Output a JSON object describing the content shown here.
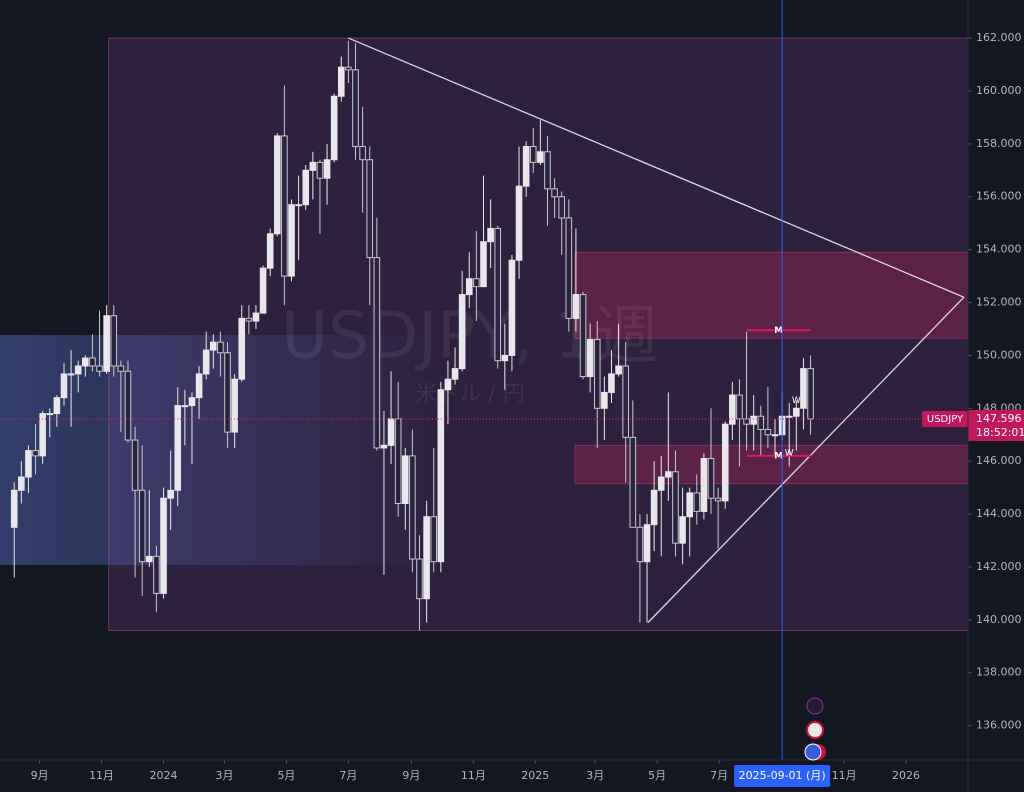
{
  "chart_data": {
    "type": "candlestick",
    "watermark": "USDJPY, 1週",
    "watermark_sub": "米ドル / 円",
    "symbol": "USDJPY",
    "last_price": {
      "value": 147.596,
      "label": "147.596"
    },
    "countdown": "18:52:01",
    "up_color": "#e8e8ec",
    "down_color": "#c8c8d0",
    "xlim": [
      "2023-07-24",
      "2026-03-03"
    ],
    "ylim": [
      134.7,
      163.44
    ],
    "yticks": [
      {
        "value": 136,
        "label": "136.000"
      },
      {
        "value": 138,
        "label": "138.000"
      },
      {
        "value": 140,
        "label": "140.000"
      },
      {
        "value": 142,
        "label": "142.000"
      },
      {
        "value": 144,
        "label": "144.000"
      },
      {
        "value": 146,
        "label": "146.000"
      },
      {
        "value": 148,
        "label": "148.000"
      },
      {
        "value": 150,
        "label": "150.000"
      },
      {
        "value": 152,
        "label": "152.000"
      },
      {
        "value": 154,
        "label": "154.000"
      },
      {
        "value": 156,
        "label": "156.000"
      },
      {
        "value": 158,
        "label": "158.000"
      },
      {
        "value": 160,
        "label": "160.000"
      },
      {
        "value": 162,
        "label": "162.000"
      }
    ],
    "xticks": [
      {
        "value": "2023-09-01",
        "label": "9月"
      },
      {
        "value": "2023-11-01",
        "label": "11月"
      },
      {
        "value": "2024-01-01",
        "label": "2024"
      },
      {
        "value": "2024-03-01",
        "label": "3月"
      },
      {
        "value": "2024-05-01",
        "label": "5月"
      },
      {
        "value": "2024-07-01",
        "label": "7月"
      },
      {
        "value": "2024-09-01",
        "label": "9月"
      },
      {
        "value": "2024-11-01",
        "label": "11月"
      },
      {
        "value": "2025-01-01",
        "label": "2025"
      },
      {
        "value": "2025-03-01",
        "label": "3月"
      },
      {
        "value": "2025-05-01",
        "label": "5月"
      },
      {
        "value": "2025-07-01",
        "label": "7月"
      },
      {
        "value": "2025-11-01",
        "label": "11月"
      },
      {
        "value": "2026-01-01",
        "label": "2026"
      }
    ],
    "crosshair": {
      "value": "2025-09-01",
      "label": "2025-09-01 (月)"
    },
    "zones": [
      {
        "start": "2023-11-08",
        "low": 139.6,
        "high": 162.0,
        "color": "rgba(120,60,140,0.28)"
      },
      {
        "start": "2025-02-09",
        "low": 150.65,
        "high": 153.9,
        "color": "rgba(200,40,90,0.28)"
      },
      {
        "start": "2025-02-09",
        "low": 145.15,
        "high": 146.6,
        "color": "rgba(200,40,90,0.28)"
      }
    ],
    "trendlines": [
      [
        [
          "2024-07-01",
          162.0
        ],
        [
          "2026-02-27",
          152.2
        ]
      ],
      [
        [
          "2025-04-22",
          139.9
        ],
        [
          "2026-02-27",
          152.2
        ]
      ]
    ],
    "patterns": [
      {
        "label": "M",
        "price": 150.95,
        "start": "2025-07-28",
        "end": "2025-09-29"
      },
      {
        "label": "M",
        "price": 146.2,
        "start": "2025-07-28",
        "end": "2025-09-29"
      }
    ],
    "pattern_marks": [
      {
        "label": "W",
        "date": "2025-09-15",
        "price": 148.3
      },
      {
        "label": "W",
        "date": "2025-09-08",
        "price": 146.3
      }
    ],
    "x": [
      "2023-08-07",
      "2023-08-14",
      "2023-08-21",
      "2023-08-28",
      "2023-09-04",
      "2023-09-11",
      "2023-09-18",
      "2023-09-25",
      "2023-10-02",
      "2023-10-09",
      "2023-10-16",
      "2023-10-23",
      "2023-10-30",
      "2023-11-06",
      "2023-11-13",
      "2023-11-20",
      "2023-11-27",
      "2023-12-04",
      "2023-12-11",
      "2023-12-18",
      "2023-12-25",
      "2024-01-01",
      "2024-01-08",
      "2024-01-15",
      "2024-01-22",
      "2024-01-29",
      "2024-02-05",
      "2024-02-12",
      "2024-02-19",
      "2024-02-26",
      "2024-03-04",
      "2024-03-11",
      "2024-03-18",
      "2024-03-25",
      "2024-04-01",
      "2024-04-08",
      "2024-04-15",
      "2024-04-22",
      "2024-04-29",
      "2024-05-06",
      "2024-05-13",
      "2024-05-20",
      "2024-05-27",
      "2024-06-03",
      "2024-06-10",
      "2024-06-17",
      "2024-06-24",
      "2024-07-01",
      "2024-07-08",
      "2024-07-15",
      "2024-07-22",
      "2024-07-29",
      "2024-08-05",
      "2024-08-12",
      "2024-08-19",
      "2024-08-26",
      "2024-09-02",
      "2024-09-09",
      "2024-09-16",
      "2024-09-23",
      "2024-09-30",
      "2024-10-07",
      "2024-10-14",
      "2024-10-21",
      "2024-10-28",
      "2024-11-04",
      "2024-11-11",
      "2024-11-18",
      "2024-11-25",
      "2024-12-02",
      "2024-12-09",
      "2024-12-16",
      "2024-12-23",
      "2024-12-30",
      "2025-01-06",
      "2025-01-13",
      "2025-01-20",
      "2025-01-27",
      "2025-02-03",
      "2025-02-10",
      "2025-02-17",
      "2025-02-24",
      "2025-03-03",
      "2025-03-10",
      "2025-03-17",
      "2025-03-24",
      "2025-03-31",
      "2025-04-07",
      "2025-04-14",
      "2025-04-21",
      "2025-04-28",
      "2025-05-05",
      "2025-05-12",
      "2025-05-19",
      "2025-05-26",
      "2025-06-02",
      "2025-06-09",
      "2025-06-16",
      "2025-06-23",
      "2025-06-30",
      "2025-07-07",
      "2025-07-14",
      "2025-07-21",
      "2025-07-28",
      "2025-08-04",
      "2025-08-11",
      "2025-08-18",
      "2025-08-25",
      "2025-09-01",
      "2025-09-08",
      "2025-09-15",
      "2025-09-22",
      "2025-09-29"
    ],
    "ohlc": [
      [
        143.5,
        145.2,
        141.6,
        144.9
      ],
      [
        144.9,
        146.0,
        144.4,
        145.4
      ],
      [
        145.4,
        146.6,
        144.8,
        146.4
      ],
      [
        146.4,
        147.4,
        145.5,
        146.2
      ],
      [
        146.2,
        147.9,
        145.9,
        147.8
      ],
      [
        147.8,
        148.0,
        146.9,
        147.8
      ],
      [
        147.8,
        148.5,
        147.3,
        148.4
      ],
      [
        148.4,
        149.7,
        148.1,
        149.3
      ],
      [
        149.3,
        150.2,
        147.3,
        149.3
      ],
      [
        149.3,
        149.8,
        148.6,
        149.6
      ],
      [
        149.6,
        150.0,
        149.2,
        149.9
      ],
      [
        149.9,
        150.8,
        149.4,
        149.6
      ],
      [
        149.6,
        151.7,
        149.2,
        149.4
      ],
      [
        149.4,
        151.9,
        149.3,
        151.5
      ],
      [
        151.5,
        151.9,
        149.2,
        149.6
      ],
      [
        149.6,
        149.8,
        147.1,
        149.4
      ],
      [
        149.4,
        149.8,
        146.7,
        146.8
      ],
      [
        146.8,
        147.3,
        141.6,
        144.9
      ],
      [
        144.9,
        146.6,
        140.9,
        142.2
      ],
      [
        142.2,
        144.9,
        142.0,
        142.4
      ],
      [
        142.4,
        142.8,
        140.3,
        141.0
      ],
      [
        141.0,
        145.0,
        140.8,
        144.6
      ],
      [
        144.6,
        146.4,
        143.4,
        144.9
      ],
      [
        144.9,
        148.8,
        144.3,
        148.1
      ],
      [
        148.1,
        148.7,
        146.6,
        148.1
      ],
      [
        148.1,
        148.6,
        145.9,
        148.4
      ],
      [
        148.4,
        149.6,
        147.6,
        149.3
      ],
      [
        149.3,
        150.9,
        149.1,
        150.2
      ],
      [
        150.2,
        150.8,
        149.5,
        150.5
      ],
      [
        150.5,
        150.9,
        149.2,
        150.1
      ],
      [
        150.1,
        150.5,
        146.5,
        147.1
      ],
      [
        147.1,
        149.3,
        146.5,
        149.1
      ],
      [
        149.1,
        151.9,
        149.0,
        151.4
      ],
      [
        151.4,
        151.9,
        150.8,
        151.3
      ],
      [
        151.3,
        151.9,
        151.0,
        151.6
      ],
      [
        151.6,
        153.4,
        151.6,
        153.3
      ],
      [
        153.3,
        154.8,
        153.0,
        154.6
      ],
      [
        154.6,
        158.4,
        154.5,
        158.3
      ],
      [
        158.3,
        160.2,
        151.9,
        153.0
      ],
      [
        153.0,
        155.9,
        152.8,
        155.7
      ],
      [
        155.7,
        156.8,
        153.6,
        155.7
      ],
      [
        155.7,
        157.2,
        155.5,
        157.0
      ],
      [
        157.0,
        157.7,
        155.9,
        157.3
      ],
      [
        157.3,
        157.4,
        154.6,
        156.7
      ],
      [
        156.7,
        158.0,
        155.7,
        157.4
      ],
      [
        157.4,
        159.9,
        157.3,
        159.8
      ],
      [
        159.8,
        161.3,
        159.6,
        160.9
      ],
      [
        160.9,
        161.9,
        160.3,
        160.8
      ],
      [
        160.8,
        161.8,
        157.4,
        157.9
      ],
      [
        157.9,
        159.4,
        155.4,
        157.4
      ],
      [
        157.4,
        157.9,
        151.9,
        153.7
      ],
      [
        153.7,
        155.2,
        146.4,
        146.5
      ],
      [
        146.5,
        147.9,
        141.7,
        146.6
      ],
      [
        146.6,
        149.4,
        145.9,
        147.6
      ],
      [
        147.6,
        149.0,
        143.9,
        144.4
      ],
      [
        144.4,
        146.5,
        143.4,
        146.2
      ],
      [
        146.2,
        147.2,
        141.8,
        142.3
      ],
      [
        142.3,
        143.2,
        139.6,
        140.8
      ],
      [
        140.8,
        144.5,
        139.9,
        143.9
      ],
      [
        143.9,
        146.5,
        141.8,
        142.2
      ],
      [
        142.2,
        149.0,
        141.8,
        148.7
      ],
      [
        148.7,
        149.8,
        147.4,
        149.1
      ],
      [
        149.1,
        150.3,
        148.9,
        149.5
      ],
      [
        149.5,
        153.2,
        149.4,
        152.3
      ],
      [
        152.3,
        153.9,
        151.8,
        152.9
      ],
      [
        152.9,
        154.7,
        151.3,
        152.6
      ],
      [
        152.6,
        156.8,
        152.6,
        154.3
      ],
      [
        154.3,
        155.9,
        153.3,
        154.8
      ],
      [
        154.8,
        154.9,
        149.5,
        149.8
      ],
      [
        149.8,
        151.2,
        148.7,
        150.0
      ],
      [
        150.0,
        153.8,
        149.4,
        153.6
      ],
      [
        153.6,
        157.9,
        152.9,
        156.4
      ],
      [
        156.4,
        158.1,
        156.0,
        157.9
      ],
      [
        157.9,
        158.6,
        156.9,
        157.3
      ],
      [
        157.3,
        158.9,
        157.2,
        157.7
      ],
      [
        157.7,
        158.3,
        154.9,
        156.3
      ],
      [
        156.3,
        156.7,
        155.2,
        156.0
      ],
      [
        156.0,
        156.2,
        153.8,
        155.2
      ],
      [
        155.2,
        155.9,
        150.9,
        151.4
      ],
      [
        151.4,
        154.8,
        150.9,
        152.3
      ],
      [
        152.3,
        152.4,
        149.1,
        149.2
      ],
      [
        149.2,
        151.2,
        148.6,
        150.6
      ],
      [
        150.6,
        151.3,
        146.5,
        148.0
      ],
      [
        148.0,
        149.2,
        146.8,
        148.6
      ],
      [
        148.6,
        150.2,
        148.2,
        149.3
      ],
      [
        149.3,
        151.2,
        149.2,
        149.6
      ],
      [
        149.6,
        150.5,
        145.2,
        146.9
      ],
      [
        146.9,
        148.3,
        143.5,
        143.5
      ],
      [
        143.5,
        144.0,
        139.9,
        142.2
      ],
      [
        142.2,
        144.0,
        139.9,
        143.6
      ],
      [
        143.6,
        146.0,
        142.6,
        144.9
      ],
      [
        144.9,
        146.2,
        142.4,
        145.4
      ],
      [
        145.4,
        148.6,
        144.5,
        145.6
      ],
      [
        145.6,
        146.4,
        142.4,
        142.9
      ],
      [
        142.9,
        145.0,
        142.1,
        143.9
      ],
      [
        143.9,
        145.0,
        142.4,
        144.8
      ],
      [
        144.8,
        145.5,
        143.6,
        144.1
      ],
      [
        144.1,
        146.3,
        143.8,
        146.1
      ],
      [
        146.1,
        148.0,
        144.0,
        144.6
      ],
      [
        144.6,
        145.0,
        142.7,
        144.5
      ],
      [
        144.5,
        147.5,
        144.2,
        147.4
      ],
      [
        147.4,
        149.0,
        146.8,
        148.5
      ],
      [
        148.5,
        149.1,
        145.8,
        147.6
      ],
      [
        147.6,
        150.9,
        146.4,
        147.4
      ],
      [
        147.4,
        148.5,
        146.4,
        147.7
      ],
      [
        147.7,
        148.1,
        146.2,
        147.2
      ],
      [
        147.2,
        148.8,
        146.5,
        147.0
      ],
      [
        147.0,
        147.6,
        146.2,
        147.0
      ],
      [
        147.0,
        148.6,
        146.8,
        147.7
      ],
      [
        147.7,
        148.2,
        145.8,
        147.7
      ],
      [
        147.7,
        148.3,
        146.4,
        148.0
      ],
      [
        148.0,
        149.9,
        147.2,
        149.5
      ],
      [
        149.5,
        150.0,
        147.0,
        147.596
      ]
    ]
  }
}
